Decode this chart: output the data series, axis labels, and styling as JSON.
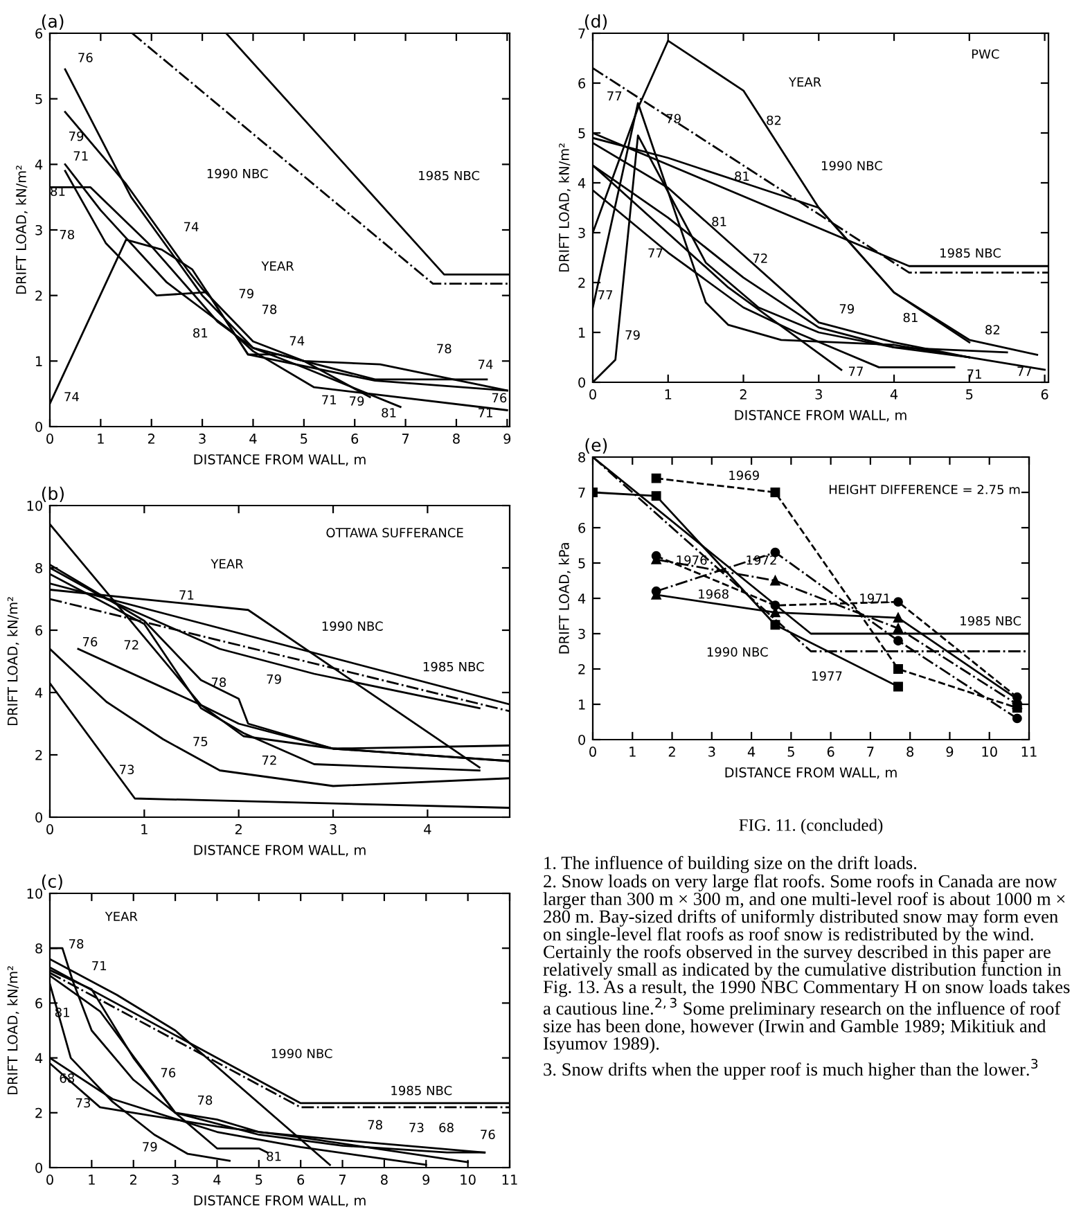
{
  "chart_data": [
    {
      "type": "line",
      "title": "(a)",
      "xlabel": "DISTANCE FROM WALL, m",
      "ylabel": "DRIFT LOAD, kN/m²",
      "xlim": [
        0,
        9.05
      ],
      "ylim": [
        0,
        6
      ],
      "xticks": [
        0,
        1,
        2,
        3,
        4,
        5,
        6,
        7,
        8,
        9
      ],
      "yticks": [
        0,
        1,
        2,
        3,
        4,
        5,
        6
      ],
      "series": [
        {
          "color": "#000000",
          "line_style": "solid",
          "x": [
            3.47,
            7.76,
            9.05
          ],
          "values": [
            6,
            2.32,
            2.32
          ]
        },
        {
          "color": "#000000",
          "line_style": "dashdot",
          "x": [
            1.62,
            7.54,
            9.05
          ],
          "values": [
            6,
            2.18,
            2.18
          ]
        },
        {
          "color": "#000000",
          "line_style": "solid",
          "x": [
            0.3,
            1.6,
            3,
            4,
            5,
            6.5,
            9
          ],
          "values": [
            5.45,
            3.5,
            2.0,
            1.2,
            1.0,
            0.95,
            0.55
          ]
        },
        {
          "color": "#000000",
          "line_style": "solid",
          "x": [
            0.3,
            1.5,
            2.7,
            3.0,
            4,
            5,
            6.3
          ],
          "values": [
            4.8,
            3.7,
            2.4,
            2.1,
            1.3,
            1.0,
            0.45
          ]
        },
        {
          "color": "#000000",
          "line_style": "solid",
          "x": [
            0.3,
            1,
            2.3,
            3.5,
            4,
            5.2,
            6.3,
            9
          ],
          "values": [
            4.0,
            3.3,
            2.2,
            1.5,
            1.15,
            0.6,
            0.5,
            0.25
          ]
        },
        {
          "color": "#000000",
          "line_style": "solid",
          "x": [
            0,
            0.8,
            2,
            3.3,
            4,
            5,
            6.9
          ],
          "values": [
            3.65,
            3.65,
            2.75,
            1.6,
            1.2,
            0.9,
            0.3
          ]
        },
        {
          "color": "#000000",
          "line_style": "solid",
          "x": [
            0.3,
            1.1,
            2.1,
            3.1,
            3.9,
            6.4,
            9
          ],
          "values": [
            3.9,
            2.8,
            2.0,
            2.05,
            1.1,
            0.7,
            0.55
          ]
        },
        {
          "color": "#000000",
          "line_style": "solid",
          "x": [
            0,
            1.5,
            2.2,
            2.8,
            3.9,
            4.5,
            6.4,
            8.6
          ],
          "values": [
            0.35,
            2.85,
            2.7,
            2.4,
            1.1,
            1.1,
            0.72,
            0.72
          ]
        }
      ],
      "annotations": [
        "76",
        "79",
        "71",
        "81",
        "78",
        "74",
        "YEAR",
        "79",
        "78",
        "81",
        "74",
        "78",
        "74",
        "76",
        "71",
        "81",
        "79",
        "71",
        "74",
        "1990 NBC",
        "1985 NBC"
      ]
    },
    {
      "type": "line",
      "title": "(d)",
      "xlabel": "DISTANCE FROM WALL, m",
      "ylabel": "DRIFT LOAD, kN/m²",
      "xlim": [
        0,
        6.05
      ],
      "ylim": [
        0,
        7
      ],
      "xticks": [
        0,
        1,
        2,
        3,
        4,
        5,
        6
      ],
      "yticks": [
        0,
        1,
        2,
        3,
        4,
        5,
        6,
        7
      ],
      "series": [
        {
          "color": "#000000",
          "line_style": "solid",
          "x": [
            0,
            4.2,
            6.05
          ],
          "values": [
            5.0,
            2.33,
            2.33
          ]
        },
        {
          "color": "#000000",
          "line_style": "dashdot",
          "x": [
            0,
            4.2,
            6.05
          ],
          "values": [
            6.3,
            2.2,
            2.2
          ]
        },
        {
          "color": "#000000",
          "line_style": "solid",
          "x": [
            0,
            0.6,
            1,
            2,
            3,
            4,
            5,
            5.9
          ],
          "values": [
            3.0,
            5.5,
            6.85,
            5.85,
            3.5,
            1.8,
            0.85,
            0.55
          ]
        },
        {
          "color": "#000000",
          "line_style": "solid",
          "x": [
            0,
            1,
            2,
            3,
            4,
            5
          ],
          "values": [
            4.9,
            4.5,
            4.0,
            3.5,
            1.8,
            0.8
          ]
        },
        {
          "color": "#000000",
          "line_style": "solid",
          "x": [
            0,
            1,
            3,
            4,
            5
          ],
          "values": [
            4.8,
            3.9,
            1.2,
            0.8,
            0.5
          ]
        },
        {
          "color": "#000000",
          "line_style": "solid",
          "x": [
            0,
            0.3,
            0.6,
            1.5,
            2.2,
            3,
            4,
            5.5
          ],
          "values": [
            0,
            0.45,
            4.95,
            2.4,
            1.5,
            1.0,
            0.7,
            0.6
          ]
        },
        {
          "color": "#000000",
          "line_style": "solid",
          "x": [
            0,
            0.6,
            1.5,
            1.8,
            2.5,
            4,
            6
          ],
          "values": [
            1.5,
            5.6,
            1.6,
            1.15,
            0.85,
            0.75,
            0.25
          ]
        },
        {
          "color": "#000000",
          "line_style": "solid",
          "x": [
            0,
            1,
            2,
            3,
            4,
            5
          ],
          "values": [
            4.35,
            3.3,
            2.1,
            1.1,
            0.7,
            0.5
          ]
        },
        {
          "color": "#000000",
          "line_style": "solid",
          "x": [
            0,
            1.8,
            3.3
          ],
          "values": [
            4.35,
            1.9,
            0.25
          ]
        },
        {
          "color": "#000000",
          "line_style": "solid",
          "x": [
            0,
            1,
            2,
            2.7,
            3.8,
            4.8
          ],
          "values": [
            3.85,
            2.6,
            1.5,
            1.0,
            0.3,
            0.3
          ]
        }
      ],
      "annotations": [
        "PWC",
        "YEAR",
        "82",
        "77",
        "79",
        "81",
        "1990 NBC",
        "81",
        "77",
        "72",
        "1985 NBC",
        "77",
        "79",
        "79",
        "81",
        "82",
        "77",
        "71",
        "77"
      ]
    },
    {
      "type": "line",
      "title": "(b)",
      "xlabel": "DISTANCE FROM WALL, m",
      "ylabel": "DRIFT LOAD, kN/m²",
      "xlim": [
        0,
        4.87
      ],
      "ylim": [
        0,
        10
      ],
      "xticks": [
        0,
        1,
        2,
        3,
        4
      ],
      "yticks": [
        0,
        2,
        4,
        6,
        8,
        10
      ],
      "series": [
        {
          "color": "#000000",
          "line_style": "solid",
          "x": [
            0,
            4.87
          ],
          "values": [
            7.5,
            3.62
          ]
        },
        {
          "color": "#000000",
          "line_style": "dashdot",
          "x": [
            0,
            4.87
          ],
          "values": [
            7.0,
            3.4
          ]
        },
        {
          "color": "#000000",
          "line_style": "solid",
          "x": [
            0,
            2.1,
            4.55
          ],
          "values": [
            7.3,
            6.65,
            1.6
          ]
        },
        {
          "color": "#000000",
          "line_style": "solid",
          "x": [
            0,
            0.6,
            1.8,
            2.8,
            4.55
          ],
          "values": [
            8.0,
            7.0,
            5.4,
            4.6,
            3.5
          ]
        },
        {
          "color": "#000000",
          "line_style": "solid",
          "x": [
            0,
            1.6,
            2.0,
            3.0,
            4.87
          ],
          "values": [
            9.4,
            3.6,
            3.0,
            2.2,
            2.3
          ]
        },
        {
          "color": "#000000",
          "line_style": "solid",
          "x": [
            0,
            1,
            1.6,
            2.0,
            2.1,
            3.0,
            4.87
          ],
          "values": [
            8.1,
            6.3,
            4.4,
            3.8,
            3.0,
            2.2,
            1.8
          ]
        },
        {
          "color": "#000000",
          "line_style": "solid",
          "x": [
            0,
            1.0,
            1.6,
            2.05,
            2.8,
            4.55
          ],
          "values": [
            7.8,
            6.2,
            3.5,
            2.7,
            1.7,
            1.5
          ]
        },
        {
          "color": "#000000",
          "line_style": "solid",
          "x": [
            0.3,
            1.6,
            2.05,
            3.0,
            4.87
          ],
          "values": [
            5.4,
            3.6,
            2.6,
            2.2,
            1.8
          ]
        },
        {
          "color": "#000000",
          "line_style": "solid",
          "x": [
            0,
            0.6,
            1.2,
            1.8,
            3.0,
            4.87
          ],
          "values": [
            5.4,
            3.7,
            2.5,
            1.5,
            1.0,
            1.25
          ]
        },
        {
          "color": "#000000",
          "line_style": "solid",
          "x": [
            0,
            0.9,
            4.87
          ],
          "values": [
            4.3,
            0.6,
            0.3
          ]
        }
      ],
      "annotations": [
        "OTTAWA SUFFERANCE",
        "YEAR",
        "71",
        "1990 NBC",
        "1985 NBC",
        "76",
        "72",
        "78",
        "79",
        "75",
        "72",
        "73"
      ]
    },
    {
      "type": "line",
      "title": "(c)",
      "xlabel": "DISTANCE FROM WALL, m",
      "ylabel": "DRIFT LOAD, kN/m²",
      "xlim": [
        0,
        11
      ],
      "ylim": [
        0,
        10
      ],
      "xticks": [
        0,
        1,
        2,
        3,
        4,
        5,
        6,
        7,
        8,
        9,
        10,
        11
      ],
      "yticks": [
        0,
        2,
        4,
        6,
        8,
        10
      ],
      "series": [
        {
          "color": "#000000",
          "line_style": "solid",
          "x": [
            0,
            6.0,
            11
          ],
          "values": [
            7.3,
            2.35,
            2.35
          ]
        },
        {
          "color": "#000000",
          "line_style": "dashdot",
          "x": [
            0,
            6.0,
            11
          ],
          "values": [
            7.1,
            2.2,
            2.2
          ]
        },
        {
          "color": "#000000",
          "line_style": "solid",
          "x": [
            0,
            1.6,
            3,
            6.7
          ],
          "values": [
            7.6,
            6.3,
            5.0,
            0.1
          ]
        },
        {
          "color": "#000000",
          "line_style": "solid",
          "x": [
            0,
            0.3,
            0.55,
            1,
            2,
            3,
            4,
            5,
            7,
            10.4
          ],
          "values": [
            8.0,
            8.0,
            6.8,
            5.0,
            3.2,
            2.0,
            1.75,
            1.3,
            1.0,
            0.55
          ]
        },
        {
          "color": "#000000",
          "line_style": "solid",
          "x": [
            0,
            1.2,
            3,
            4,
            5,
            5.2
          ],
          "values": [
            7.0,
            5.7,
            2.0,
            0.7,
            0.7,
            0.55
          ]
        },
        {
          "color": "#000000",
          "line_style": "solid",
          "x": [
            0,
            1,
            2,
            3,
            5,
            7,
            9.5,
            10.4
          ],
          "values": [
            7.2,
            6.5,
            4.0,
            2.0,
            1.2,
            0.8,
            0.55,
            0.55
          ]
        },
        {
          "color": "#000000",
          "line_style": "solid",
          "x": [
            0,
            1.2,
            2,
            4,
            6,
            10
          ],
          "values": [
            3.8,
            2.2,
            2.0,
            1.5,
            1.1,
            0.2
          ]
        },
        {
          "color": "#000000",
          "line_style": "solid",
          "x": [
            0,
            1.5,
            4,
            6,
            9
          ],
          "values": [
            4.0,
            2.5,
            1.3,
            0.75,
            0.1
          ]
        },
        {
          "color": "#000000",
          "line_style": "solid",
          "x": [
            0,
            0.5,
            1.5,
            2.5,
            3.3,
            4.3
          ],
          "values": [
            6.7,
            4.0,
            2.4,
            1.2,
            0.5,
            0.25
          ]
        }
      ],
      "annotations": [
        "YEAR",
        "78",
        "71",
        "81",
        "1990 NBC",
        "76",
        "78",
        "1985 NBC",
        "68",
        "73",
        "79",
        "81",
        "78",
        "73",
        "68",
        "76"
      ]
    },
    {
      "type": "line",
      "title": "(e)",
      "xlabel": "DISTANCE FROM WALL, m",
      "ylabel": "DRIFT LOAD, kPa",
      "xlim": [
        0,
        11
      ],
      "ylim": [
        0,
        8
      ],
      "xticks": [
        0,
        1,
        2,
        3,
        4,
        5,
        6,
        7,
        8,
        9,
        10,
        11
      ],
      "yticks": [
        0,
        1,
        2,
        3,
        4,
        5,
        6,
        7,
        8
      ],
      "series": [
        {
          "color": "#000000",
          "line_style": "solid",
          "x": [
            0,
            5.5,
            11
          ],
          "values": [
            8.0,
            3.0,
            3.0
          ]
        },
        {
          "color": "#000000",
          "line_style": "dashdot",
          "x": [
            0,
            5.5,
            11
          ],
          "values": [
            8.0,
            2.5,
            2.5
          ]
        },
        {
          "color": "#000000",
          "line_style": "dashed",
          "marker": "square",
          "x": [
            1.6,
            4.6,
            7.7,
            10.7
          ],
          "values": [
            7.4,
            7.0,
            2.0,
            0.9
          ]
        },
        {
          "color": "#000000",
          "line_style": "solid",
          "marker": "square",
          "x": [
            0,
            1.6,
            4.6,
            7.7
          ],
          "values": [
            7.0,
            6.9,
            3.25,
            1.5
          ]
        },
        {
          "color": "#000000",
          "line_style": "dashdot",
          "marker": "circle",
          "x": [
            1.6,
            4.6,
            7.7,
            10.7
          ],
          "values": [
            4.2,
            5.3,
            2.8,
            0.6
          ]
        },
        {
          "color": "#000000",
          "line_style": "dashdot",
          "marker": "triangle",
          "x": [
            1.6,
            4.6,
            7.7,
            10.7
          ],
          "values": [
            5.1,
            4.5,
            3.15,
            1.0
          ]
        },
        {
          "color": "#000000",
          "line_style": "solid",
          "marker": "triangle",
          "x": [
            1.6,
            4.6,
            7.7,
            10.7
          ],
          "values": [
            4.1,
            3.6,
            3.45,
            1.15
          ]
        },
        {
          "color": "#000000",
          "line_style": "dashed",
          "marker": "circle",
          "x": [
            1.6,
            4.6,
            7.7,
            10.7
          ],
          "values": [
            5.2,
            3.8,
            3.9,
            1.2
          ]
        }
      ],
      "annotations": [
        "1969",
        "HEIGHT DIFFERENCE = 2.75 m",
        "1976",
        "1972",
        "1968",
        "1971",
        "1985 NBC",
        "1990 NBC",
        "1977",
        "FIG. 11. (concluded)"
      ]
    },
    {
      "type": "other",
      "annotations": [
        "1. The influence of building size on the drift loads.",
        "2. Snow loads on very large flat roofs. Some roofs in Canada are now larger than 300 m × 300 m, and one multi-level roof is about 1000 m × 280 m. Bay-sized drifts of uniformly distributed snow may form even on single-level flat roofs as roof snow is redistributed by the wind. Certainly the roofs observed in the survey described in this paper are relatively small as indicated by the cumulative distribution function in Fig. 13. As a result, the 1990 NBC Commentary H on snow loads takes a cautious line.$^{2,3}$ Some preliminary research on the influence of roof size has been done, however (Irwin and Gamble 1989; Mikitiuk and Isyumov 1989).",
        "3. Snow drifts when the upper roof is much higher than the lower.$^{3}$"
      ]
    }
  ]
}
